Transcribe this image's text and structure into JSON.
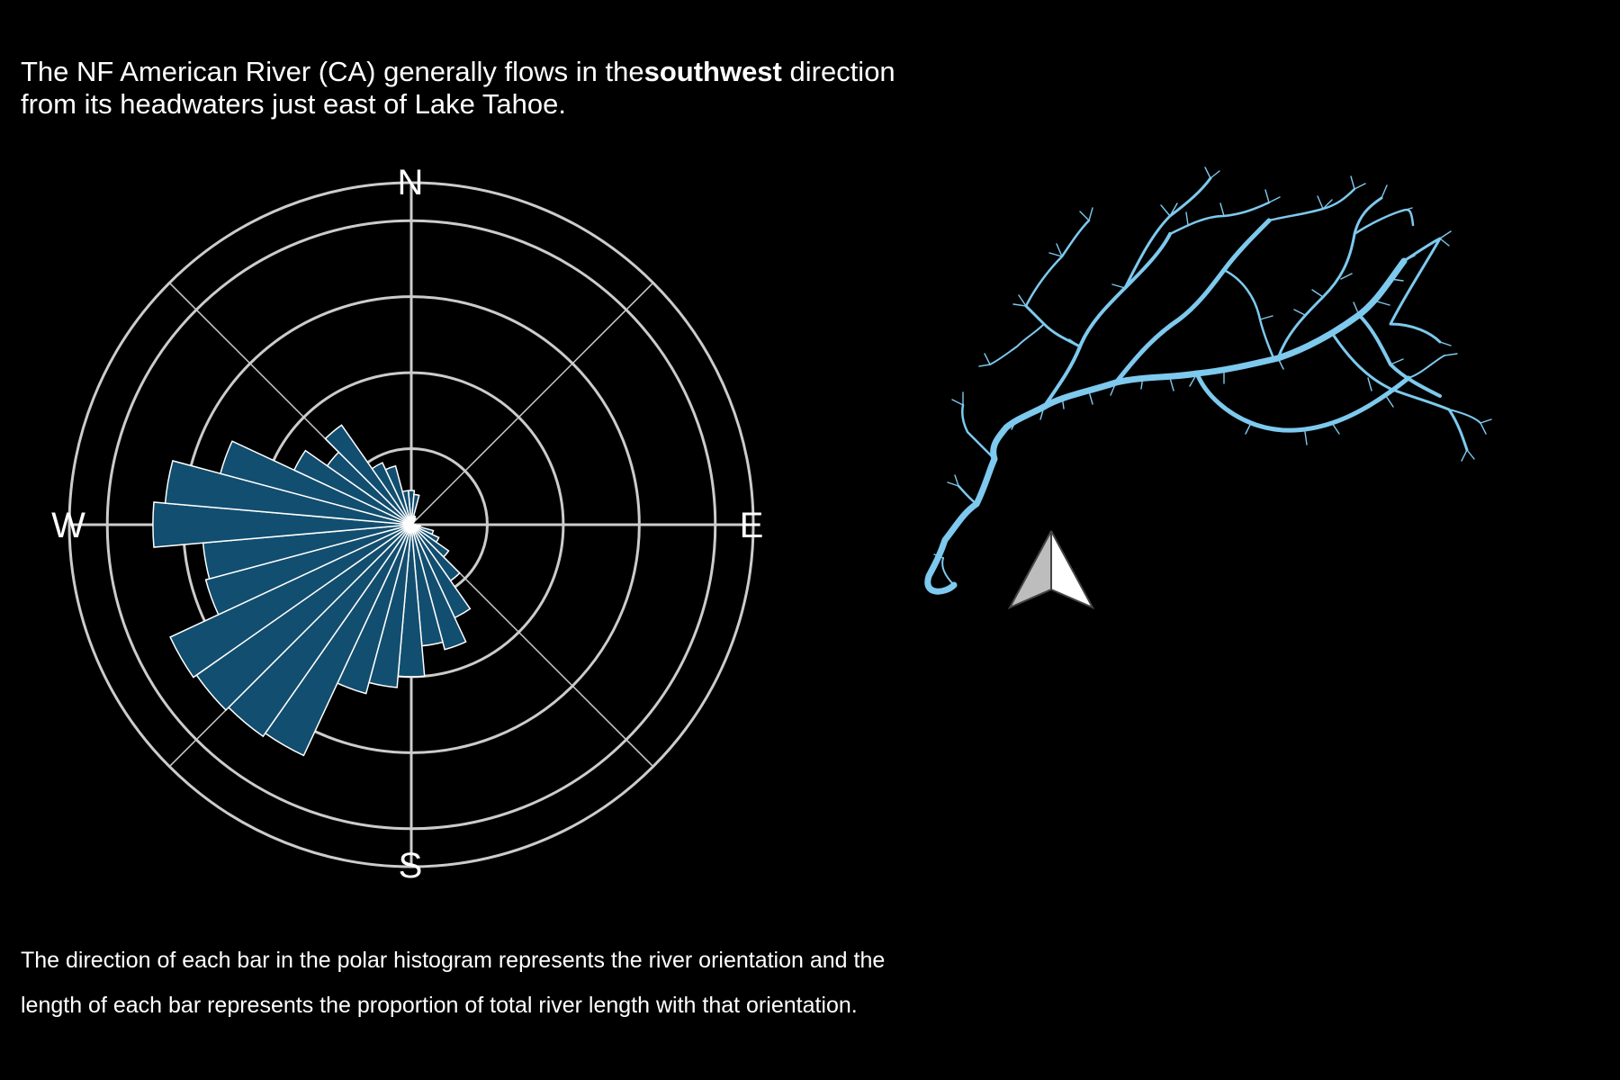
{
  "headline": {
    "part1": "The NF American River (CA) generally flows in the",
    "emphasis": "southwest",
    "part2": "direction",
    "line2": "from its headwaters just east of Lake Tahoe."
  },
  "caption": {
    "line1": "The direction of each bar in the polar histogram represents the river orientation and the",
    "line2": "length of each bar represents the proportion of total river length with that orientation."
  },
  "colors": {
    "bar": "#124e6f",
    "river": "#7ec9ee",
    "grid": "#cccccc",
    "background": "#000000"
  },
  "north_arrow_icon": "north-arrow-icon",
  "chart_data": {
    "type": "polar-bar",
    "compass_labels": {
      "north": "N",
      "east": "E",
      "south": "S",
      "west": "W"
    },
    "bin_width_deg": 10,
    "bearings_deg": [
      0,
      10,
      20,
      30,
      40,
      50,
      60,
      70,
      80,
      90,
      100,
      110,
      120,
      130,
      140,
      150,
      160,
      170,
      180,
      190,
      200,
      210,
      220,
      230,
      240,
      250,
      260,
      270,
      280,
      290,
      300,
      310,
      320,
      330,
      340,
      350
    ],
    "values": [
      0.45,
      0.4,
      0.12,
      0.1,
      0.05,
      0.03,
      0.02,
      0.01,
      0.03,
      0.05,
      0.12,
      0.3,
      0.4,
      0.6,
      0.9,
      1.35,
      1.7,
      1.6,
      2.0,
      2.15,
      2.3,
      3.35,
      3.4,
      3.45,
      3.5,
      2.8,
      2.75,
      3.4,
      3.25,
      2.6,
      1.7,
      1.35,
      1.6,
      0.9,
      0.8,
      0.45
    ],
    "rlim": [
      0,
      4.5
    ],
    "grid_rings": [
      1,
      2,
      3,
      4,
      4.5
    ]
  }
}
